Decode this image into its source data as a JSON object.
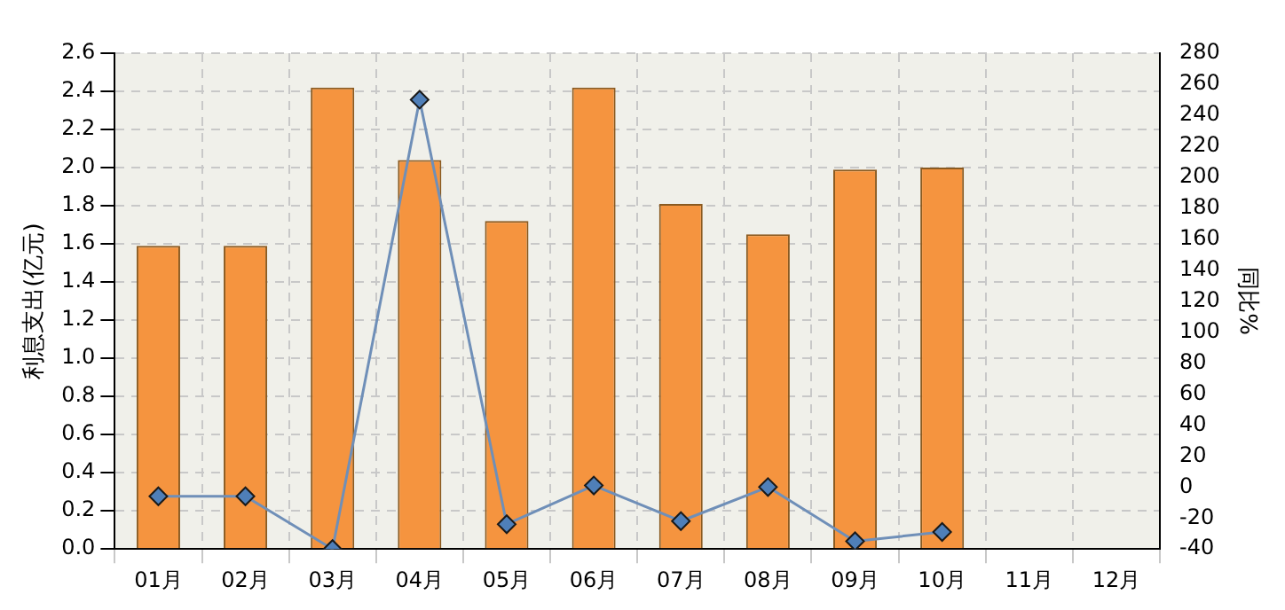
{
  "chart_data": {
    "type": "bar",
    "ylabel": "利息支出(亿元)",
    "y2label": "同比%",
    "categories": [
      "01月",
      "02月",
      "03月",
      "04月",
      "05月",
      "06月",
      "07月",
      "08月",
      "09月",
      "10月",
      "11月",
      "12月"
    ],
    "series": [
      {
        "color": "#f5943f",
        "values": [
          1.59,
          1.59,
          2.42,
          2.04,
          1.72,
          2.42,
          1.81,
          1.65,
          1.99,
          2.0,
          null,
          null
        ]
      },
      {
        "type": "line",
        "axis": "y2",
        "color": "#6f8fb8",
        "marker": "diamond",
        "values": [
          -6,
          -6,
          -40,
          250,
          -24,
          1,
          -22,
          0,
          -35,
          -29,
          null,
          null
        ]
      }
    ],
    "ylim": [
      0,
      2.6
    ],
    "yticks": [
      {
        "value": 0,
        "label": "0.0"
      },
      0.2,
      0.4,
      0.6,
      0.8,
      {
        "value": 1,
        "label": "1.0"
      },
      1.2,
      1.4,
      1.6,
      1.8,
      {
        "value": 2,
        "label": "2.0"
      },
      2.2,
      2.4,
      2.6
    ],
    "y2lim": [
      -40,
      280
    ],
    "y2ticks": [
      -40,
      -20,
      0,
      20,
      40,
      60,
      80,
      100,
      120,
      140,
      160,
      180,
      200,
      220,
      240,
      260,
      280
    ],
    "grid": true,
    "legend": false
  }
}
